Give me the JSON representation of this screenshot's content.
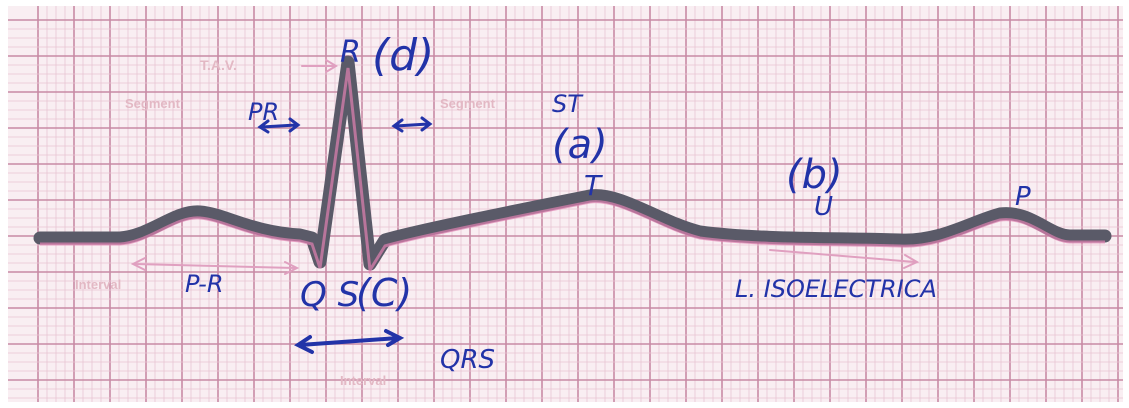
{
  "printed_labels": {
    "tav": "T.A.V.",
    "segment_pr": "Segment",
    "segment_st": "Segment",
    "interval_pr": "Interval",
    "interval_qrs": "Interval"
  },
  "handwritten_labels": {
    "r_wave": "R",
    "label_d": "(d)",
    "pr": "PR",
    "st": "ST",
    "label_a": "(a)",
    "t_wave": "T",
    "label_b": "(b)",
    "u_wave": "U",
    "p_wave_right": "P",
    "p_r_interval": "P-R",
    "qs": "Q S",
    "label_c": "(C)",
    "isoelectric_line": "L. ISOELECTRICA",
    "qrs": "QRS"
  },
  "colors": {
    "paper": "#f9eef2",
    "grid_major": "#c88aa4",
    "grid_minor": "#e8c4d2",
    "trace": "#5a5a68",
    "trace_highlight": "#e080b0",
    "ink": "#2233a8",
    "printed_text": "#e3b8c4"
  }
}
